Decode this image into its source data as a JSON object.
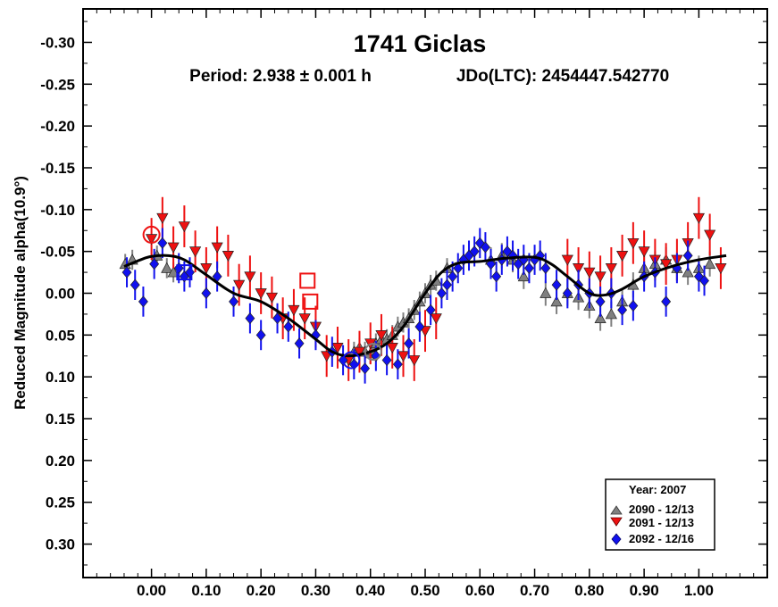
{
  "chart_data": {
    "type": "scatter",
    "title": "1741 Giclas",
    "subtitle_period": "Period: 2.938 ± 0.001 h",
    "subtitle_epoch": "JDo(LTC): 2454447.542770",
    "ylabel": "Reduced Magnitude alpha(10.9°)",
    "xlabel": "",
    "xlim": [
      -0.125,
      1.125
    ],
    "ylim": [
      0.34,
      -0.34
    ],
    "y_inverted": true,
    "grid": false,
    "xticks": [
      "0.00",
      "0.10",
      "0.20",
      "0.30",
      "0.40",
      "0.50",
      "0.60",
      "0.70",
      "0.80",
      "0.90",
      "1.00"
    ],
    "xtick_values": [
      0.0,
      0.1,
      0.2,
      0.3,
      0.4,
      0.5,
      0.6,
      0.7,
      0.8,
      0.9,
      1.0
    ],
    "yticks": [
      "-0.30",
      "-0.25",
      "-0.20",
      "-0.15",
      "-0.10",
      "-0.05",
      "0.00",
      "0.05",
      "0.10",
      "0.15",
      "0.20",
      "0.25",
      "0.30"
    ],
    "ytick_values": [
      -0.3,
      -0.25,
      -0.2,
      -0.15,
      -0.1,
      -0.05,
      0.0,
      0.05,
      0.1,
      0.15,
      0.2,
      0.25,
      0.3
    ],
    "legend": {
      "placement": "bottom-right",
      "title": "Year: 2007",
      "entries": [
        {
          "label": "2090 - 12/13",
          "marker": "triangle-up",
          "color": "#808080"
        },
        {
          "label": "2091 - 12/13",
          "marker": "triangle-down",
          "color": "#ee1111"
        },
        {
          "label": "2092 - 12/16",
          "marker": "diamond",
          "color": "#1111ee"
        }
      ]
    },
    "fit_curve": {
      "color": "#000000",
      "x": [
        -0.05,
        -0.02,
        0.0,
        0.03,
        0.06,
        0.1,
        0.15,
        0.2,
        0.25,
        0.3,
        0.33,
        0.36,
        0.4,
        0.43,
        0.46,
        0.5,
        0.53,
        0.56,
        0.6,
        0.65,
        0.7,
        0.73,
        0.76,
        0.8,
        0.83,
        0.86,
        0.9,
        0.95,
        1.0,
        1.05
      ],
      "y": [
        -0.032,
        -0.04,
        -0.044,
        -0.045,
        -0.04,
        -0.022,
        0.0,
        0.01,
        0.03,
        0.055,
        0.07,
        0.075,
        0.07,
        0.06,
        0.04,
        0.0,
        -0.025,
        -0.036,
        -0.038,
        -0.042,
        -0.043,
        -0.035,
        -0.02,
        0.0,
        0.002,
        -0.005,
        -0.02,
        -0.032,
        -0.04,
        -0.045
      ]
    },
    "series": [
      {
        "name": "2090 - 12/13",
        "marker": "triangle-up",
        "color": "#808080",
        "x": [
          -0.048,
          -0.035,
          0.01,
          0.028,
          0.04,
          0.37,
          0.38,
          0.39,
          0.4,
          0.405,
          0.41,
          0.42,
          0.43,
          0.44,
          0.45,
          0.46,
          0.47,
          0.48,
          0.49,
          0.5,
          0.51,
          0.52,
          0.54,
          0.62,
          0.64,
          0.66,
          0.68,
          0.72,
          0.74,
          0.76,
          0.78,
          0.8,
          0.82,
          0.84,
          0.86,
          0.88,
          0.9,
          0.92,
          0.94,
          0.96,
          0.98,
          1.0,
          1.02
        ],
        "y": [
          -0.035,
          -0.04,
          -0.045,
          -0.03,
          -0.025,
          0.07,
          0.065,
          0.07,
          0.072,
          0.068,
          0.06,
          0.055,
          0.055,
          0.05,
          0.04,
          0.035,
          0.03,
          0.02,
          0.01,
          0.0,
          -0.01,
          -0.015,
          -0.03,
          -0.04,
          -0.045,
          -0.04,
          -0.02,
          0.0,
          0.01,
          0.0,
          0.005,
          0.015,
          0.03,
          0.025,
          0.01,
          -0.01,
          -0.03,
          -0.035,
          -0.04,
          -0.03,
          -0.025,
          -0.03,
          -0.035
        ],
        "err": [
          0.012,
          0.012,
          0.012,
          0.012,
          0.012,
          0.012,
          0.012,
          0.012,
          0.012,
          0.012,
          0.012,
          0.012,
          0.012,
          0.012,
          0.012,
          0.012,
          0.012,
          0.012,
          0.012,
          0.012,
          0.012,
          0.012,
          0.012,
          0.015,
          0.015,
          0.015,
          0.015,
          0.015,
          0.015,
          0.015,
          0.015,
          0.015,
          0.015,
          0.015,
          0.015,
          0.015,
          0.015,
          0.015,
          0.015,
          0.015,
          0.015,
          0.015,
          0.015
        ]
      },
      {
        "name": "2091 - 12/13",
        "marker": "triangle-down",
        "color": "#ee1111",
        "x": [
          0.0,
          0.02,
          0.04,
          0.06,
          0.08,
          0.1,
          0.12,
          0.14,
          0.16,
          0.18,
          0.2,
          0.22,
          0.24,
          0.26,
          0.28,
          0.3,
          0.32,
          0.34,
          0.36,
          0.38,
          0.4,
          0.42,
          0.44,
          0.46,
          0.48,
          0.5,
          0.52,
          0.76,
          0.78,
          0.8,
          0.82,
          0.84,
          0.86,
          0.88,
          0.9,
          0.92,
          0.94,
          0.96,
          0.98,
          1.0,
          1.02,
          1.04
        ],
        "y": [
          -0.065,
          -0.09,
          -0.055,
          -0.08,
          -0.05,
          -0.03,
          -0.055,
          -0.045,
          -0.01,
          -0.02,
          0.0,
          0.005,
          0.03,
          0.02,
          0.03,
          0.04,
          0.075,
          0.065,
          0.08,
          0.07,
          0.06,
          0.05,
          0.065,
          0.075,
          0.08,
          0.045,
          0.03,
          -0.04,
          -0.03,
          -0.025,
          -0.02,
          -0.03,
          -0.045,
          -0.06,
          -0.05,
          -0.04,
          -0.035,
          -0.04,
          -0.06,
          -0.09,
          -0.07,
          -0.03
        ],
        "err": [
          0.025,
          0.025,
          0.025,
          0.025,
          0.025,
          0.025,
          0.025,
          0.025,
          0.025,
          0.025,
          0.025,
          0.025,
          0.025,
          0.025,
          0.025,
          0.025,
          0.025,
          0.025,
          0.025,
          0.025,
          0.025,
          0.025,
          0.025,
          0.025,
          0.025,
          0.025,
          0.025,
          0.025,
          0.025,
          0.025,
          0.025,
          0.025,
          0.025,
          0.025,
          0.025,
          0.025,
          0.025,
          0.025,
          0.025,
          0.025,
          0.025,
          0.025
        ]
      },
      {
        "name": "2092 - 12/16",
        "marker": "diamond",
        "color": "#1111ee",
        "x": [
          -0.045,
          -0.03,
          -0.015,
          0.005,
          0.02,
          0.05,
          0.06,
          0.07,
          0.1,
          0.12,
          0.15,
          0.18,
          0.2,
          0.23,
          0.25,
          0.27,
          0.3,
          0.33,
          0.35,
          0.37,
          0.39,
          0.41,
          0.43,
          0.45,
          0.47,
          0.49,
          0.51,
          0.53,
          0.54,
          0.55,
          0.56,
          0.57,
          0.58,
          0.59,
          0.6,
          0.61,
          0.62,
          0.63,
          0.64,
          0.65,
          0.66,
          0.67,
          0.68,
          0.69,
          0.7,
          0.71,
          0.72,
          0.74,
          0.76,
          0.78,
          0.8,
          0.82,
          0.84,
          0.86,
          0.88,
          0.9,
          0.92,
          0.94,
          0.96,
          0.98,
          1.0,
          1.01
        ],
        "y": [
          -0.025,
          -0.01,
          0.01,
          -0.035,
          -0.06,
          -0.03,
          -0.02,
          -0.025,
          0.0,
          -0.02,
          0.01,
          0.03,
          0.05,
          0.03,
          0.04,
          0.06,
          0.05,
          0.07,
          0.08,
          0.085,
          0.09,
          0.075,
          0.08,
          0.085,
          0.06,
          0.04,
          0.02,
          0.0,
          -0.01,
          -0.02,
          -0.03,
          -0.04,
          -0.045,
          -0.05,
          -0.06,
          -0.055,
          -0.035,
          -0.02,
          -0.04,
          -0.05,
          -0.045,
          -0.035,
          -0.04,
          -0.03,
          -0.04,
          -0.045,
          -0.03,
          -0.01,
          0.0,
          -0.01,
          0.0,
          0.01,
          0.0,
          0.02,
          0.015,
          -0.02,
          -0.025,
          0.01,
          -0.03,
          -0.045,
          -0.02,
          -0.015
        ],
        "err": [
          0.018,
          0.018,
          0.018,
          0.018,
          0.018,
          0.018,
          0.018,
          0.018,
          0.018,
          0.018,
          0.018,
          0.018,
          0.018,
          0.018,
          0.018,
          0.018,
          0.018,
          0.018,
          0.018,
          0.018,
          0.018,
          0.018,
          0.018,
          0.018,
          0.018,
          0.018,
          0.018,
          0.018,
          0.018,
          0.018,
          0.018,
          0.018,
          0.018,
          0.018,
          0.018,
          0.018,
          0.018,
          0.018,
          0.018,
          0.018,
          0.018,
          0.018,
          0.018,
          0.018,
          0.018,
          0.018,
          0.018,
          0.018,
          0.018,
          0.018,
          0.018,
          0.018,
          0.018,
          0.018,
          0.018,
          0.018,
          0.018,
          0.018,
          0.018,
          0.018,
          0.018,
          0.018
        ]
      }
    ],
    "highlighted_points": [
      {
        "series": "2091 - 12/13",
        "shape": "circle",
        "x": 0.0,
        "y": -0.07
      },
      {
        "series": "2092 - 12/16",
        "shape": "square",
        "x": 0.06,
        "y": -0.025
      },
      {
        "series": "2091 - 12/13",
        "shape": "square",
        "x": 0.285,
        "y": -0.015
      },
      {
        "series": "2092 - 12/16",
        "shape": "circle",
        "x": 0.365,
        "y": 0.08
      },
      {
        "series": "2090 - 12/13",
        "shape": "circle",
        "x": 0.405,
        "y": 0.07
      },
      {
        "series": "2091 - 12/13",
        "shape": "square",
        "x": 0.29,
        "y": 0.01
      }
    ]
  }
}
